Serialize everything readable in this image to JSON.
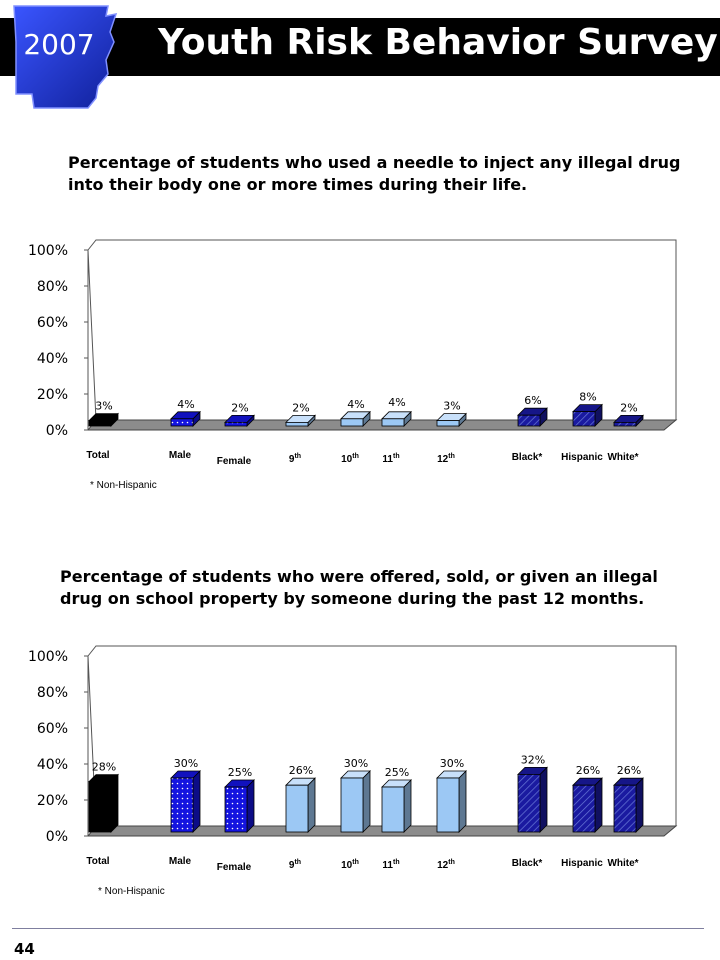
{
  "header": {
    "year": "2007",
    "title": "Youth Risk Behavior Survey"
  },
  "page_number": "44",
  "colors": {
    "header_bg": "#000000",
    "state_blue": "#1e2fd0",
    "total": "#000000",
    "gender": "#1414e0",
    "grade": "#9cc8f4",
    "race": "#1a1aa0"
  },
  "chart_data": [
    {
      "type": "bar",
      "title": "Percentage of students who used a needle to inject any illegal drug into their body one or more times during their life.",
      "categories": [
        "Total",
        "Male",
        "Female",
        "9",
        "10",
        "11",
        "12",
        "Black*",
        "Hispanic",
        "White*"
      ],
      "category_suffix": [
        "",
        "",
        "",
        "th",
        "th",
        "th",
        "th",
        "",
        "",
        ""
      ],
      "groups": [
        "total",
        "gender",
        "gender",
        "grade",
        "grade",
        "grade",
        "grade",
        "race",
        "race",
        "race"
      ],
      "values": [
        3,
        4,
        2,
        2,
        4,
        4,
        3,
        6,
        8,
        2
      ],
      "value_labels": [
        "3%",
        "4%",
        "2%",
        "2%",
        "4%",
        "4%",
        "3%",
        "6%",
        "8%",
        "2%"
      ],
      "y_ticks": [
        "0%",
        "20%",
        "40%",
        "60%",
        "80%",
        "100%"
      ],
      "ylim": [
        0,
        100
      ],
      "footnote": "* Non-Hispanic"
    },
    {
      "type": "bar",
      "title": "Percentage of students who were offered, sold, or given an illegal drug on school property by someone during the past 12 months.",
      "categories": [
        "Total",
        "Male",
        "Female",
        "9",
        "10",
        "11",
        "12",
        "Black*",
        "Hispanic",
        "White*"
      ],
      "category_suffix": [
        "",
        "",
        "",
        "th",
        "th",
        "th",
        "th",
        "",
        "",
        ""
      ],
      "groups": [
        "total",
        "gender",
        "gender",
        "grade",
        "grade",
        "grade",
        "grade",
        "race",
        "race",
        "race"
      ],
      "values": [
        28,
        30,
        25,
        26,
        30,
        25,
        30,
        32,
        26,
        26
      ],
      "value_labels": [
        "28%",
        "30%",
        "25%",
        "26%",
        "30%",
        "25%",
        "30%",
        "32%",
        "26%",
        "26%"
      ],
      "y_ticks": [
        "0%",
        "20%",
        "40%",
        "60%",
        "80%",
        "100%"
      ],
      "ylim": [
        0,
        100
      ],
      "footnote": "* Non-Hispanic"
    }
  ]
}
